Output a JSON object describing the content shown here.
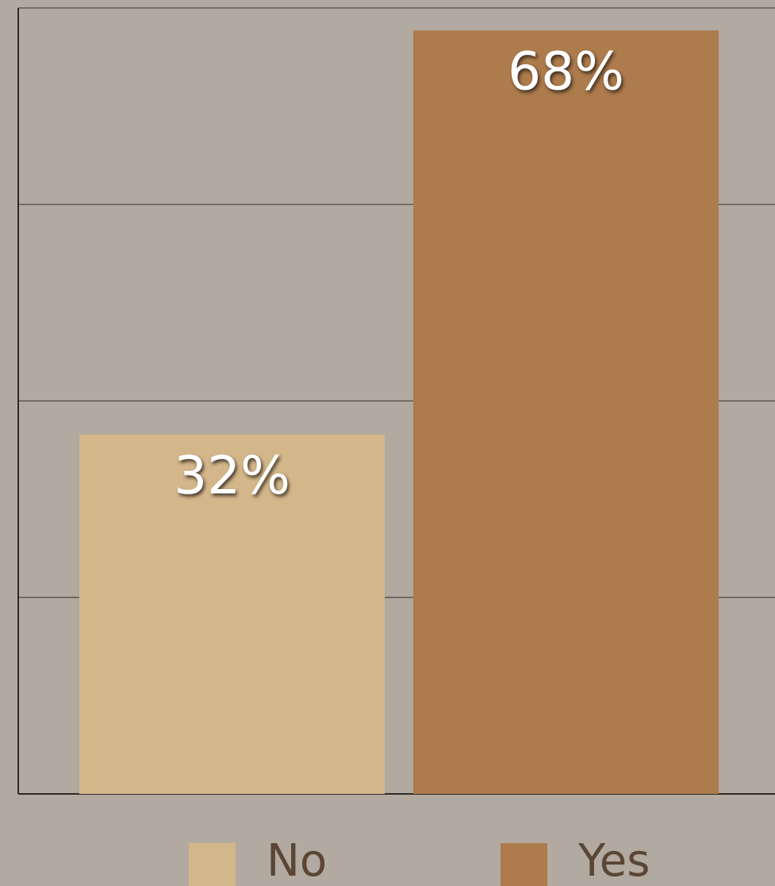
{
  "chart_data": {
    "type": "bar",
    "categories": [
      "No",
      "Yes"
    ],
    "series": [
      {
        "name": "No",
        "color": "#d3b68a",
        "values": [
          32,
          null
        ]
      },
      {
        "name": "Yes",
        "color": "#ad7b4c",
        "values": [
          null,
          68
        ]
      }
    ],
    "values": [
      32,
      68
    ],
    "value_labels": [
      "32%",
      "68%"
    ],
    "ylim": [
      0,
      70
    ],
    "yticks": [
      0,
      17.5,
      35,
      52.5,
      70
    ],
    "grid": true
  }
}
